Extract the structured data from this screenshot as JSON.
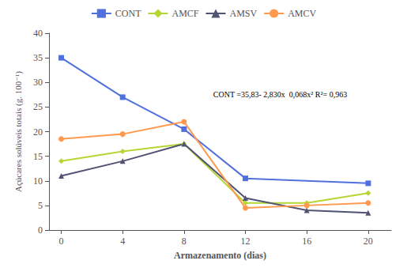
{
  "chart_data": {
    "type": "line",
    "x": [
      0,
      4,
      8,
      12,
      16,
      20
    ],
    "series": [
      {
        "name": "CONT",
        "marker": "square",
        "values": [
          35.0,
          27.0,
          20.5,
          10.5,
          null,
          9.5
        ]
      },
      {
        "name": "AMCF",
        "marker": "diamond",
        "values": [
          14.0,
          16.0,
          17.5,
          5.5,
          5.5,
          7.5
        ]
      },
      {
        "name": "AMSV",
        "marker": "triangle",
        "values": [
          11.0,
          14.0,
          17.5,
          6.5,
          4.0,
          3.5
        ]
      },
      {
        "name": "AMCV",
        "marker": "circle",
        "values": [
          18.5,
          19.5,
          22.0,
          4.5,
          5.0,
          5.5
        ]
      }
    ],
    "xlabel": "Armazenamento (dias)",
    "ylabel": "Açúcares solúveis totais (g. 100⁻¹)",
    "xlim": [
      -0.8,
      21.5
    ],
    "xticks": [
      0,
      4,
      8,
      12,
      16,
      20
    ],
    "ylim": [
      0,
      40
    ],
    "yticks": [
      0,
      5,
      10,
      15,
      20,
      25,
      30,
      35,
      40
    ],
    "annotation": "CONT =35,83- 2,830x  0,068x² R²= 0,963",
    "grid": false,
    "legend": "top"
  }
}
